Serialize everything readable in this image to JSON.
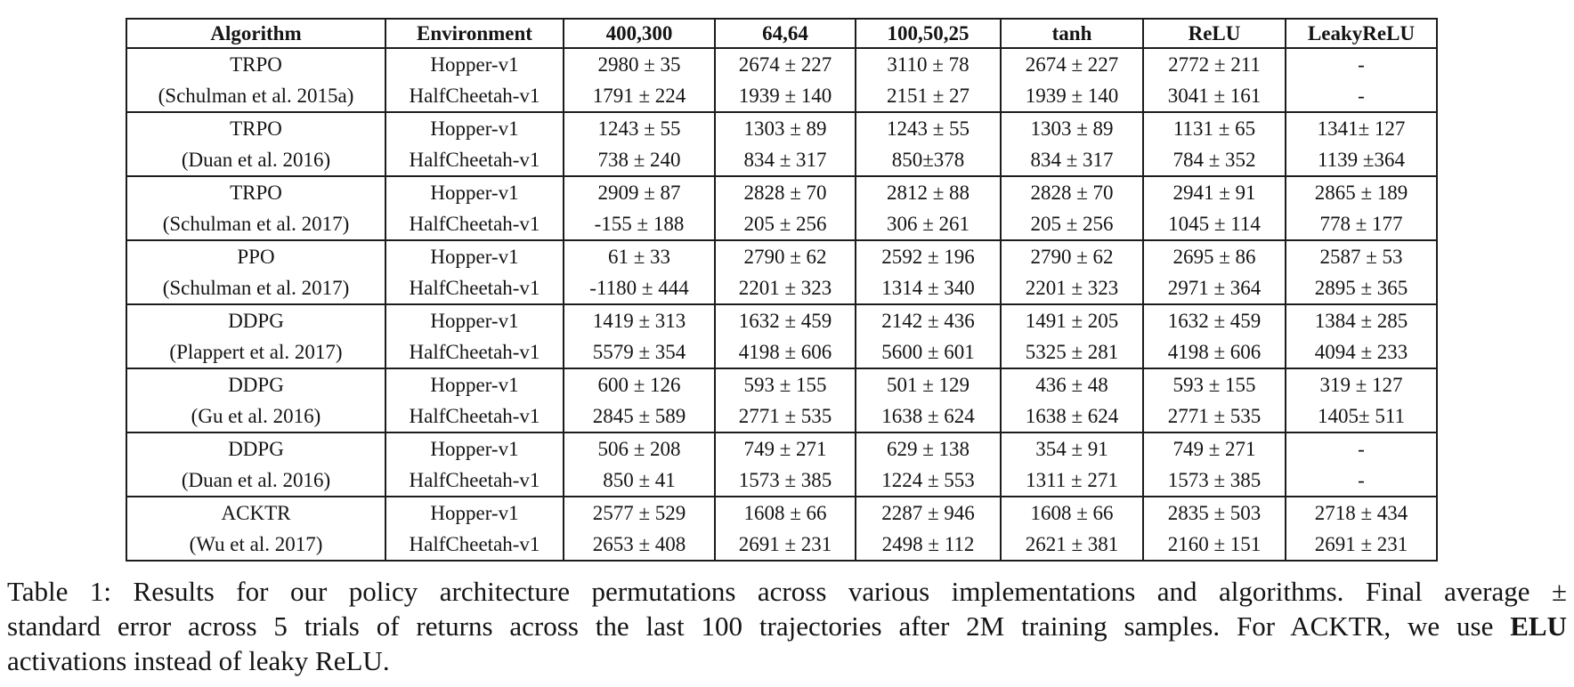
{
  "table": {
    "headers": [
      "Algorithm",
      "Environment",
      "400,300",
      "64,64",
      "100,50,25",
      "tanh",
      "ReLU",
      "LeakyReLU"
    ],
    "groups": [
      {
        "algorithm": "TRPO",
        "citation": "(Schulman et al. 2015a)",
        "rows": [
          {
            "environment": "Hopper-v1",
            "values": [
              "2980 ± 35",
              "2674 ± 227",
              "3110 ± 78",
              "2674 ± 227",
              "2772 ± 211",
              "-"
            ]
          },
          {
            "environment": "HalfCheetah-v1",
            "values": [
              "1791 ± 224",
              "1939 ± 140",
              "2151 ± 27",
              "1939 ± 140",
              "3041 ± 161",
              "-"
            ]
          }
        ]
      },
      {
        "algorithm": "TRPO",
        "citation": "(Duan et al. 2016)",
        "rows": [
          {
            "environment": "Hopper-v1",
            "values": [
              "1243 ± 55",
              "1303 ± 89",
              "1243 ± 55",
              "1303 ± 89",
              "1131 ± 65",
              "1341± 127"
            ]
          },
          {
            "environment": "HalfCheetah-v1",
            "values": [
              "738 ± 240",
              "834 ± 317",
              "850±378",
              "834 ± 317",
              "784 ± 352",
              "1139 ±364"
            ]
          }
        ]
      },
      {
        "algorithm": "TRPO",
        "citation": "(Schulman et al. 2017)",
        "rows": [
          {
            "environment": "Hopper-v1",
            "values": [
              "2909 ± 87",
              "2828 ± 70",
              "2812 ± 88",
              "2828 ± 70",
              "2941 ± 91",
              "2865 ± 189"
            ]
          },
          {
            "environment": "HalfCheetah-v1",
            "values": [
              "-155 ± 188",
              "205 ± 256",
              "306 ± 261",
              "205 ± 256",
              "1045 ± 114",
              "778 ± 177"
            ]
          }
        ]
      },
      {
        "algorithm": "PPO",
        "citation": "(Schulman et al. 2017)",
        "rows": [
          {
            "environment": "Hopper-v1",
            "values": [
              "61 ± 33",
              "2790 ± 62",
              "2592 ± 196",
              "2790 ± 62",
              "2695 ± 86",
              "2587 ± 53"
            ]
          },
          {
            "environment": "HalfCheetah-v1",
            "values": [
              "-1180 ± 444",
              "2201 ± 323",
              "1314 ± 340",
              "2201 ± 323",
              "2971 ± 364",
              "2895 ± 365"
            ]
          }
        ]
      },
      {
        "algorithm": "DDPG",
        "citation": "(Plappert et al. 2017)",
        "rows": [
          {
            "environment": "Hopper-v1",
            "values": [
              "1419 ± 313",
              "1632 ± 459",
              "2142 ± 436",
              "1491 ± 205",
              "1632 ± 459",
              "1384 ± 285"
            ]
          },
          {
            "environment": "HalfCheetah-v1",
            "values": [
              "5579 ± 354",
              "4198 ± 606",
              "5600 ± 601",
              "5325 ± 281",
              "4198 ± 606",
              "4094 ± 233"
            ]
          }
        ]
      },
      {
        "algorithm": "DDPG",
        "citation": "(Gu et al. 2016)",
        "rows": [
          {
            "environment": "Hopper-v1",
            "values": [
              "600 ± 126",
              "593 ± 155",
              "501 ± 129",
              "436 ± 48",
              "593 ± 155",
              "319 ± 127"
            ]
          },
          {
            "environment": "HalfCheetah-v1",
            "values": [
              "2845 ± 589",
              "2771 ± 535",
              "1638 ± 624",
              "1638 ± 624",
              "2771 ± 535",
              "1405± 511"
            ]
          }
        ]
      },
      {
        "algorithm": "DDPG",
        "citation": "(Duan et al. 2016)",
        "rows": [
          {
            "environment": "Hopper-v1",
            "values": [
              "506 ± 208",
              "749 ± 271",
              "629 ± 138",
              "354 ± 91",
              "749 ± 271",
              "-"
            ]
          },
          {
            "environment": "HalfCheetah-v1",
            "values": [
              "850 ± 41",
              "1573 ± 385",
              "1224 ± 553",
              "1311 ± 271",
              "1573 ± 385",
              "-"
            ]
          }
        ]
      },
      {
        "algorithm": "ACKTR",
        "citation": "(Wu et al. 2017)",
        "rows": [
          {
            "environment": "Hopper-v1",
            "values": [
              "2577 ± 529",
              "1608 ± 66",
              "2287 ± 946",
              "1608 ± 66",
              "2835 ± 503",
              "2718 ± 434"
            ]
          },
          {
            "environment": "HalfCheetah-v1",
            "values": [
              "2653 ± 408",
              "2691 ± 231",
              "2498 ± 112",
              "2621 ± 381",
              "2160 ± 151",
              "2691 ± 231"
            ]
          }
        ]
      }
    ]
  },
  "caption": {
    "line1": "Table 1: Results for our policy architecture permutations across various implementations and algorithms. Final average ±",
    "line2_prefix": "standard error across 5 trials of returns across the last 100 trajectories after 2M training samples. For ACKTR, we use ",
    "line2_bold": "ELU",
    "line3": "activations instead of leaky ReLU."
  },
  "colors": {
    "text": "#141414",
    "border": "#1c1c1c",
    "background": "#ffffff"
  }
}
